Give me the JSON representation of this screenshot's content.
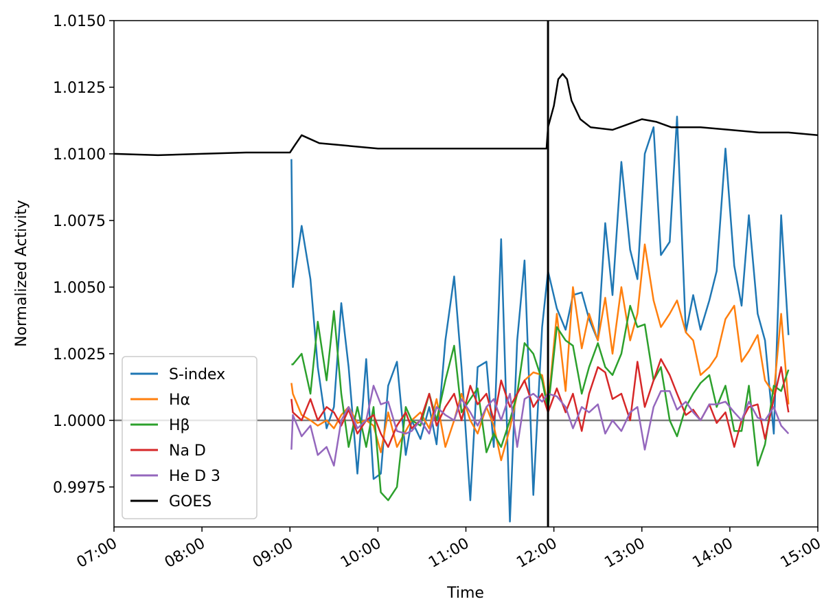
{
  "chart_data": {
    "type": "line",
    "xlabel": "Time",
    "ylabel": "Normalized Activity",
    "x": [
      "09:01",
      "09:02",
      "09:08",
      "09:14",
      "09:19",
      "09:25",
      "09:30",
      "09:35",
      "09:40",
      "09:46",
      "09:52",
      "09:57",
      "10:02",
      "10:07",
      "10:13",
      "10:19",
      "10:23",
      "10:29",
      "10:35",
      "10:40",
      "10:46",
      "10:52",
      "10:57",
      "11:03",
      "11:08",
      "11:14",
      "11:19",
      "11:24",
      "11:30",
      "11:35",
      "11:40",
      "11:46",
      "11:52",
      "11:56",
      "12:02",
      "12:08",
      "12:13",
      "12:19",
      "12:24",
      "12:30",
      "12:35",
      "12:40",
      "12:46",
      "12:52",
      "12:57",
      "13:02",
      "13:08",
      "13:13",
      "13:19",
      "13:24",
      "13:30",
      "13:35",
      "13:40",
      "13:46",
      "13:51",
      "13:57",
      "14:03",
      "14:08",
      "14:13",
      "14:19",
      "14:24",
      "14:30",
      "14:35",
      "14:40"
    ],
    "series": [
      {
        "name": "S-index",
        "color": "#1f77b4",
        "values": [
          1.0098,
          1.005,
          1.0073,
          1.0053,
          1.002,
          0.9997,
          1.0005,
          1.0044,
          1.002,
          0.998,
          1.0023,
          0.9978,
          0.998,
          1.0013,
          1.0022,
          0.9987,
          1.0,
          0.9993,
          1.0005,
          0.9991,
          1.003,
          1.0054,
          1.002,
          0.997,
          1.002,
          1.0022,
          0.999,
          1.0068,
          0.9962,
          1.003,
          1.006,
          0.9972,
          1.0035,
          1.0056,
          1.0042,
          1.0034,
          1.0047,
          1.0048,
          1.0038,
          1.003,
          1.0074,
          1.0047,
          1.0097,
          1.0064,
          1.0053,
          1.01,
          1.011,
          1.0062,
          1.0067,
          1.0114,
          1.0033,
          1.0047,
          1.0034,
          1.0045,
          1.0056,
          1.0102,
          1.0058,
          1.0043,
          1.0077,
          1.004,
          1.003,
          0.9995,
          1.0077,
          1.0032
        ]
      },
      {
        "name": "Hα",
        "color": "#ff7f0e",
        "values": [
          1.0014,
          1.001,
          1.0002,
          1.0,
          0.9998,
          1.0,
          0.9997,
          1.0002,
          1.0005,
          0.9999,
          1.0,
          0.9998,
          0.9988,
          1.0003,
          0.999,
          0.9996,
          1.0,
          1.0003,
          0.9997,
          1.0008,
          0.999,
          1.0,
          1.001,
          1.0,
          0.9995,
          1.0005,
          0.9998,
          0.9985,
          0.9997,
          1.001,
          1.0015,
          1.0018,
          1.0017,
          1.0005,
          1.004,
          1.0011,
          1.005,
          1.0027,
          1.004,
          1.003,
          1.0046,
          1.0025,
          1.005,
          1.003,
          1.004,
          1.0066,
          1.0045,
          1.0035,
          1.004,
          1.0045,
          1.0033,
          1.003,
          1.0017,
          1.002,
          1.0024,
          1.0038,
          1.0043,
          1.0022,
          1.0026,
          1.0032,
          1.0015,
          1.001,
          1.004,
          1.0006
        ]
      },
      {
        "name": "Hβ",
        "color": "#2ca02c",
        "values": [
          1.0021,
          1.0021,
          1.0025,
          1.001,
          1.0037,
          1.0015,
          1.0041,
          1.001,
          0.999,
          1.0005,
          0.999,
          1.0005,
          0.9973,
          0.997,
          0.9975,
          1.0005,
          1.0,
          0.9998,
          1.001,
          1.0,
          1.0015,
          1.0028,
          1.0003,
          1.0008,
          1.0012,
          0.9988,
          0.9995,
          0.999,
          1.0,
          1.001,
          1.0029,
          1.0025,
          1.0015,
          1.0004,
          1.0035,
          1.003,
          1.0028,
          1.001,
          1.002,
          1.0029,
          1.002,
          1.0017,
          1.0025,
          1.0043,
          1.0035,
          1.0036,
          1.0015,
          1.002,
          1.0,
          0.9994,
          1.0005,
          1.001,
          1.0014,
          1.0017,
          1.0005,
          1.0013,
          0.9996,
          0.9996,
          1.0013,
          0.9983,
          0.9991,
          1.0013,
          1.0011,
          1.0019
        ]
      },
      {
        "name": "Na D",
        "color": "#d62728",
        "values": [
          1.0008,
          1.0003,
          1.0,
          1.0008,
          1.0,
          1.0005,
          1.0003,
          0.9998,
          1.0004,
          0.9995,
          1.0,
          1.0002,
          0.9995,
          0.999,
          0.9998,
          1.0003,
          0.9997,
          1.0,
          1.001,
          0.9998,
          1.0005,
          1.001,
          1.0,
          1.0013,
          1.0006,
          1.001,
          1.0,
          1.0015,
          1.0005,
          1.001,
          1.0015,
          1.0005,
          1.001,
          1.0003,
          1.0012,
          1.0003,
          1.001,
          0.9996,
          1.001,
          1.002,
          1.0018,
          1.0008,
          1.001,
          1.0,
          1.0022,
          1.0005,
          1.0015,
          1.0023,
          1.0017,
          1.001,
          1.0002,
          1.0004,
          1.0,
          1.0006,
          0.9999,
          1.0003,
          0.999,
          1.0,
          1.0005,
          1.0006,
          0.9993,
          1.0008,
          1.002,
          1.0003
        ]
      },
      {
        "name": "He D 3",
        "color": "#9467bd",
        "values": [
          0.9989,
          1.0002,
          0.9994,
          0.9998,
          0.9987,
          0.999,
          0.9983,
          1.0,
          1.0005,
          0.9997,
          1.0,
          1.0013,
          1.0006,
          1.0007,
          0.9996,
          0.9995,
          0.9996,
          1.0,
          0.9995,
          1.0005,
          1.0002,
          1.0,
          1.0008,
          1.0003,
          0.9998,
          1.0005,
          1.0008,
          1.0,
          1.001,
          0.999,
          1.0008,
          1.001,
          1.0007,
          1.001,
          1.0009,
          1.0005,
          0.9997,
          1.0005,
          1.0003,
          1.0006,
          0.9995,
          1.0,
          0.9996,
          1.0003,
          1.0005,
          0.9989,
          1.0005,
          1.0011,
          1.0011,
          1.0004,
          1.0007,
          1.0003,
          1.0,
          1.0006,
          1.0006,
          1.0007,
          1.0003,
          1.0,
          1.0007,
          1.0001,
          1.0,
          1.0005,
          0.9998,
          0.9995
        ]
      },
      {
        "name": "GOES",
        "color": "#000000",
        "x": [
          "07:00",
          "07:30",
          "08:00",
          "08:30",
          "09:00",
          "09:03",
          "09:08",
          "09:12",
          "09:20",
          "09:40",
          "10:00",
          "11:00",
          "11:30",
          "11:55",
          "11:56",
          "12:00",
          "12:03",
          "12:06",
          "12:09",
          "12:12",
          "12:18",
          "12:25",
          "12:40",
          "12:50",
          "13:00",
          "13:10",
          "13:20",
          "13:40",
          "14:00",
          "14:20",
          "14:40",
          "15:00"
        ],
        "values": [
          1.01,
          1.00995,
          1.01,
          1.01005,
          1.01005,
          1.0103,
          1.0107,
          1.0106,
          1.0104,
          1.0103,
          1.0102,
          1.0102,
          1.0102,
          1.0102,
          1.011,
          1.0118,
          1.0128,
          1.013,
          1.0128,
          1.012,
          1.0113,
          1.011,
          1.0109,
          1.0111,
          1.0113,
          1.0112,
          1.011,
          1.011,
          1.0109,
          1.0108,
          1.0108,
          1.0107
        ]
      }
    ],
    "vline": "11:56",
    "vline_color": "#000000",
    "hline": 1.0,
    "hline_color": "#808080",
    "xlim": [
      "07:00",
      "15:00"
    ],
    "xticks": [
      "07:00",
      "08:00",
      "09:00",
      "10:00",
      "11:00",
      "12:00",
      "13:00",
      "14:00",
      "15:00"
    ],
    "ylim": [
      0.996,
      1.015
    ],
    "yticks": [
      {
        "value": 0.9975,
        "label": "0.9975"
      },
      {
        "value": 1.0,
        "label": "1.0000"
      },
      {
        "value": 1.0025,
        "label": "1.0025"
      },
      {
        "value": 1.005,
        "label": "1.0050"
      },
      {
        "value": 1.0075,
        "label": "1.0075"
      },
      {
        "value": 1.01,
        "label": "1.0100"
      },
      {
        "value": 1.0125,
        "label": "1.0125"
      },
      {
        "value": 1.015,
        "label": "1.0150"
      }
    ],
    "legend": "lower left"
  }
}
